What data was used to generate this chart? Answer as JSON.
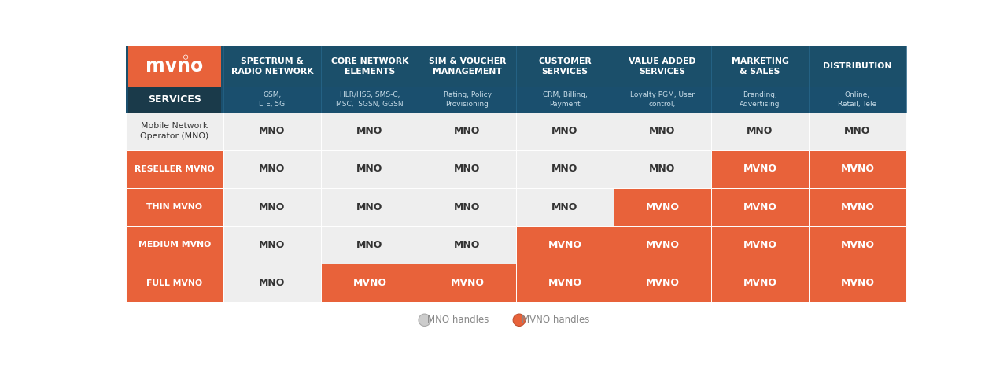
{
  "col_headers": [
    "SPECTRUM &\nRADIO NETWORK",
    "CORE NETWORK\nELEMENTS",
    "SIM & VOUCHER\nMANAGEMENT",
    "CUSTOMER\nSERVICES",
    "VALUE ADDED\nSERVICES",
    "MARKETING\n& SALES",
    "DISTRIBUTION"
  ],
  "col_subheaders": [
    "GSM,\nLTE, 5G",
    "HLR/HSS, SMS-C,\nMSC,  SGSN, GGSN",
    "Rating, Policy\nProvisioning",
    "CRM, Billing,\nPayment",
    "Loyalty PGM, User\ncontrol,",
    "Branding,\nAdvertising",
    "Online,\nRetail, Tele"
  ],
  "row_headers": [
    "Mobile Network\nOperator (MNO)",
    "RESELLER MVNO",
    "THIN MVNO",
    "MEDIUM MVNO",
    "FULL MVNO"
  ],
  "table_data": [
    [
      "MNO",
      "MNO",
      "MNO",
      "MNO",
      "MNO",
      "MNO",
      "MNO"
    ],
    [
      "MNO",
      "MNO",
      "MNO",
      "MNO",
      "MNO",
      "MVNO",
      "MVNO"
    ],
    [
      "MNO",
      "MNO",
      "MNO",
      "MNO",
      "MVNO",
      "MVNO",
      "MVNO"
    ],
    [
      "MNO",
      "MNO",
      "MNO",
      "MVNO",
      "MVNO",
      "MVNO",
      "MVNO"
    ],
    [
      "MNO",
      "MVNO",
      "MVNO",
      "MVNO",
      "MVNO",
      "MVNO",
      "MVNO"
    ]
  ],
  "color_teal_dark": "#1b4f6a",
  "color_teal_mid": "#1e5f82",
  "color_orange": "#e8623a",
  "color_mno_bg": "#eeeeee",
  "color_white": "#ffffff",
  "color_dark_text": "#333333",
  "color_logo_dark": "#1a3a4a",
  "color_bg": "#ffffff",
  "color_legend_text": "#888888",
  "color_mno_circle": "#cccccc"
}
